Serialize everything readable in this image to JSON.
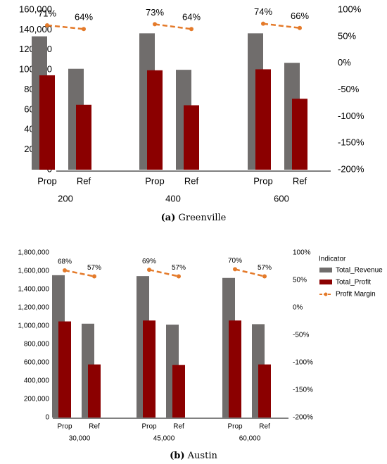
{
  "colors": {
    "revenue": "#706D6C",
    "profit": "#8B0000",
    "margin": "#E47A2A",
    "axis": "#000000"
  },
  "legend": {
    "title": "Indicator",
    "items": [
      "Total_Revenue",
      "Total_Profit",
      "Profit Margin"
    ]
  },
  "chart_data": [
    {
      "type": "bar",
      "caption_letter": "(a)",
      "caption_text": " Greenville",
      "groups": [
        "200",
        "400",
        "600"
      ],
      "subcategories": [
        "Prop",
        "Ref"
      ],
      "series": [
        {
          "name": "Total_Revenue",
          "values": [
            [
              133500,
              101000
            ],
            [
              136500,
              100000
            ],
            [
              136500,
              107000
            ]
          ]
        },
        {
          "name": "Total_Profit",
          "values": [
            [
              94500,
              65000
            ],
            [
              99500,
              64500
            ],
            [
              100500,
              71000
            ]
          ]
        },
        {
          "name": "Profit Margin",
          "axis": "right",
          "values": [
            [
              71,
              64
            ],
            [
              73,
              64
            ],
            [
              74,
              66
            ]
          ],
          "labels": [
            [
              "71%",
              "64%"
            ],
            [
              "73%",
              "64%"
            ],
            [
              "74%",
              "66%"
            ]
          ]
        }
      ],
      "ylim": [
        0,
        160000
      ],
      "yticks": [
        "0",
        "20,000",
        "40,000",
        "60,000",
        "80,000",
        "100,000",
        "120,000",
        "140,000",
        "160,000"
      ],
      "y2lim": [
        -200,
        100
      ],
      "y2ticks": [
        "-200%",
        "-150%",
        "-100%",
        "-50%",
        "0%",
        "50%",
        "100%"
      ],
      "legend": false
    },
    {
      "type": "bar",
      "caption_letter": "(b)",
      "caption_text": " Austin",
      "groups": [
        "30,000",
        "45,000",
        "60,000"
      ],
      "subcategories": [
        "Prop",
        "Ref"
      ],
      "series": [
        {
          "name": "Total_Revenue",
          "values": [
            [
              1555000,
              1025000
            ],
            [
              1545000,
              1015000
            ],
            [
              1525000,
              1020000
            ]
          ]
        },
        {
          "name": "Total_Profit",
          "values": [
            [
              1050000,
              580000
            ],
            [
              1060000,
              575000
            ],
            [
              1060000,
              580000
            ]
          ]
        },
        {
          "name": "Profit Margin",
          "axis": "right",
          "values": [
            [
              68,
              57
            ],
            [
              69,
              57
            ],
            [
              70,
              57
            ]
          ],
          "labels": [
            [
              "68%",
              "57%"
            ],
            [
              "69%",
              "57%"
            ],
            [
              "70%",
              "57%"
            ]
          ]
        }
      ],
      "ylim": [
        0,
        1800000
      ],
      "yticks": [
        "0",
        "200,000",
        "400,000",
        "600,000",
        "800,000",
        "1,000,000",
        "1,200,000",
        "1,400,000",
        "1,600,000",
        "1,800,000"
      ],
      "y2lim": [
        -200,
        100
      ],
      "y2ticks": [
        "-200%",
        "-150%",
        "-100%",
        "-50%",
        "0%",
        "50%",
        "100%"
      ],
      "legend": true
    }
  ]
}
